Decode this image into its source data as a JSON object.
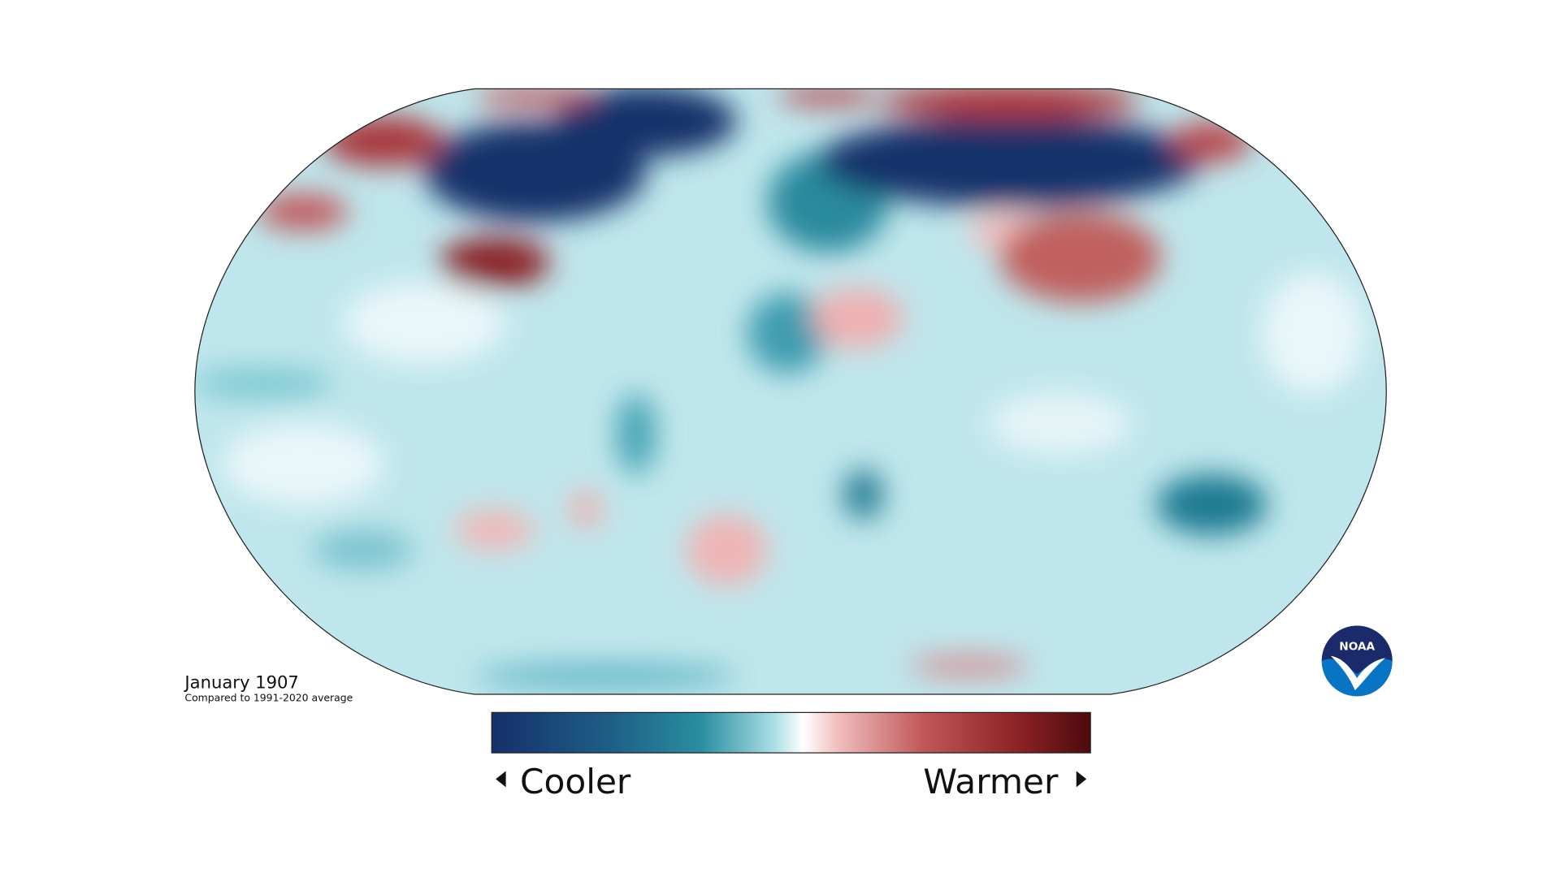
{
  "title": "January 1907",
  "subtitle": "Compared to 1991-2020 average",
  "legend": {
    "low": "Cooler",
    "high": "Warmer"
  },
  "logo": "NOAA"
}
